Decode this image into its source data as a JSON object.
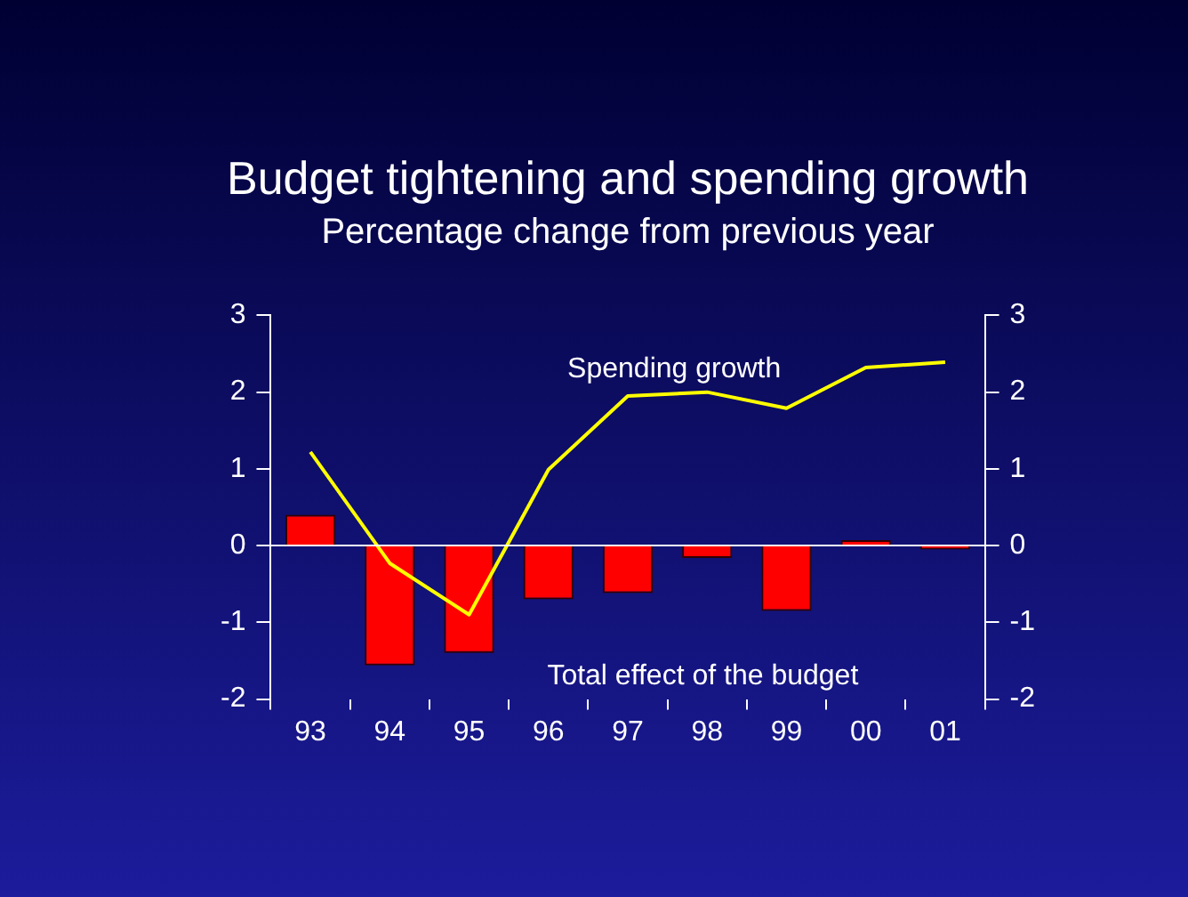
{
  "chart_data": {
    "type": "bar",
    "title": "Budget tightening and spending growth",
    "subtitle": "Percentage change from previous year",
    "categories": [
      "93",
      "94",
      "95",
      "96",
      "97",
      "98",
      "99",
      "00",
      "01"
    ],
    "series": [
      {
        "name": "Total effect of the budget",
        "color": "#ff0000",
        "values": [
          0.4,
          -1.56,
          -1.4,
          -0.7,
          -0.62,
          -0.16,
          -0.85,
          0.07,
          -0.05
        ]
      },
      {
        "name": "Spending growth",
        "type": "line",
        "color": "#ffff00",
        "values": [
          1.22,
          -0.23,
          -0.9,
          0.99,
          1.95,
          2.0,
          1.79,
          2.32,
          2.39
        ]
      }
    ],
    "ylim": [
      -2,
      3
    ],
    "yticks": [
      -2,
      -1,
      0,
      1,
      2,
      3
    ],
    "y2lim": [
      -2,
      3
    ],
    "y2ticks": [
      -2,
      -1,
      0,
      1,
      2,
      3
    ],
    "ref_lines": [
      {
        "axis": "y",
        "value": 0,
        "color": "#ffffff"
      }
    ],
    "grid": false,
    "legend": false,
    "marker": "none",
    "line_style": "solid"
  }
}
